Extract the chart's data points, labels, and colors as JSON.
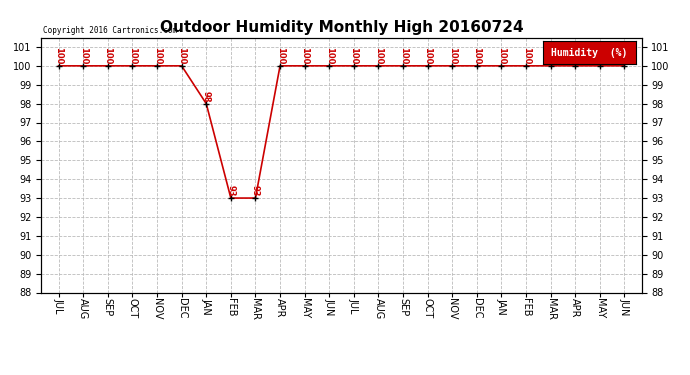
{
  "title": "Outdoor Humidity Monthly High 20160724",
  "copyright_text": "Copyright 2016 Cartronics.com",
  "legend_label": "Humidity  (%)",
  "months": [
    "JUL",
    "AUG",
    "SEP",
    "OCT",
    "NOV",
    "DEC",
    "JAN",
    "FEB",
    "MAR",
    "APR",
    "MAY",
    "JUN",
    "JUL",
    "AUG",
    "SEP",
    "OCT",
    "NOV",
    "DEC",
    "JAN",
    "FEB",
    "MAR",
    "APR",
    "MAY",
    "JUN"
  ],
  "values": [
    100,
    100,
    100,
    100,
    100,
    100,
    98,
    93,
    93,
    100,
    100,
    100,
    100,
    100,
    100,
    100,
    100,
    100,
    100,
    100,
    100,
    100,
    100,
    100
  ],
  "ylim_min": 88,
  "ylim_max": 101.5,
  "line_color": "#cc0000",
  "marker_color": "#000000",
  "grid_color": "#bbbbbb",
  "bg_color": "#ffffff",
  "title_fontsize": 11,
  "tick_fontsize": 7,
  "legend_bg": "#cc0000",
  "legend_text_color": "#ffffff",
  "legend_fontsize": 7
}
